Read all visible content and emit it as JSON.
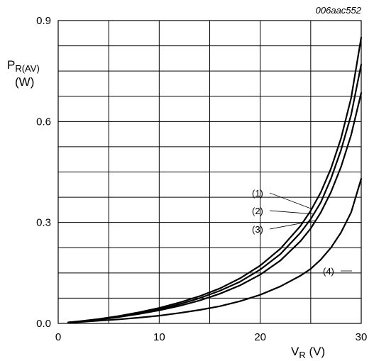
{
  "figure_code": "006aac552",
  "chart_data": {
    "type": "line",
    "ylabel_main": "P",
    "ylabel_sub": "R(AV)",
    "ylabel_unit": "(W)",
    "xlabel_main": "V",
    "xlabel_sub": "R",
    "xlabel_unit": " (V)",
    "xlim": [
      0,
      30
    ],
    "ylim": [
      0,
      0.9
    ],
    "xticks": [
      0,
      10,
      20,
      30
    ],
    "xtick_labels": [
      "0",
      "10",
      "20",
      "30"
    ],
    "yticks": [
      0.0,
      0.3,
      0.6,
      0.9
    ],
    "ytick_labels": [
      "0.0",
      "0.3",
      "0.6",
      "0.9"
    ],
    "x_gridlines": [
      5,
      10,
      15,
      20,
      25
    ],
    "y_gridlines": [
      0.075,
      0.15,
      0.225,
      0.3,
      0.375,
      0.45,
      0.525,
      0.6,
      0.675,
      0.75,
      0.825
    ],
    "series": [
      {
        "name": "(1)",
        "x": [
          1,
          2,
          4,
          6,
          8,
          10,
          12,
          14,
          16,
          18,
          20,
          22,
          24,
          25,
          26,
          27,
          28,
          29,
          30
        ],
        "y": [
          0.003,
          0.006,
          0.013,
          0.022,
          0.033,
          0.046,
          0.062,
          0.081,
          0.104,
          0.134,
          0.172,
          0.222,
          0.29,
          0.335,
          0.39,
          0.46,
          0.55,
          0.67,
          0.85
        ]
      },
      {
        "name": "(2)",
        "x": [
          1,
          2,
          4,
          6,
          8,
          10,
          12,
          14,
          16,
          18,
          20,
          22,
          24,
          25,
          26,
          27,
          28,
          29,
          30
        ],
        "y": [
          0.003,
          0.006,
          0.012,
          0.02,
          0.03,
          0.042,
          0.057,
          0.075,
          0.097,
          0.124,
          0.16,
          0.206,
          0.27,
          0.31,
          0.36,
          0.43,
          0.515,
          0.62,
          0.77
        ]
      },
      {
        "name": "(3)",
        "x": [
          1,
          2,
          4,
          6,
          8,
          10,
          12,
          14,
          16,
          18,
          20,
          22,
          24,
          25,
          26,
          27,
          28,
          29,
          30
        ],
        "y": [
          0.003,
          0.005,
          0.011,
          0.019,
          0.028,
          0.039,
          0.052,
          0.068,
          0.088,
          0.113,
          0.145,
          0.187,
          0.245,
          0.282,
          0.33,
          0.39,
          0.465,
          0.56,
          0.685
        ]
      },
      {
        "name": "(4)",
        "x": [
          1,
          2,
          4,
          6,
          8,
          10,
          12,
          14,
          16,
          18,
          20,
          22,
          24,
          25,
          26,
          27,
          28,
          29,
          30
        ],
        "y": [
          0.002,
          0.004,
          0.008,
          0.012,
          0.017,
          0.023,
          0.031,
          0.04,
          0.051,
          0.066,
          0.085,
          0.11,
          0.142,
          0.162,
          0.19,
          0.225,
          0.27,
          0.33,
          0.43
        ]
      }
    ],
    "annotations": [
      {
        "text": "(1)",
        "target_series": "(1)",
        "target_x": 25.1
      },
      {
        "text": "(2)",
        "target_series": "(2)",
        "target_x": 25.3
      },
      {
        "text": "(3)",
        "target_series": "(3)",
        "target_x": 25.5
      },
      {
        "text": "(4)",
        "target_series": "(4)",
        "target_x": 27.5
      }
    ],
    "grid": true,
    "legend": "none"
  }
}
